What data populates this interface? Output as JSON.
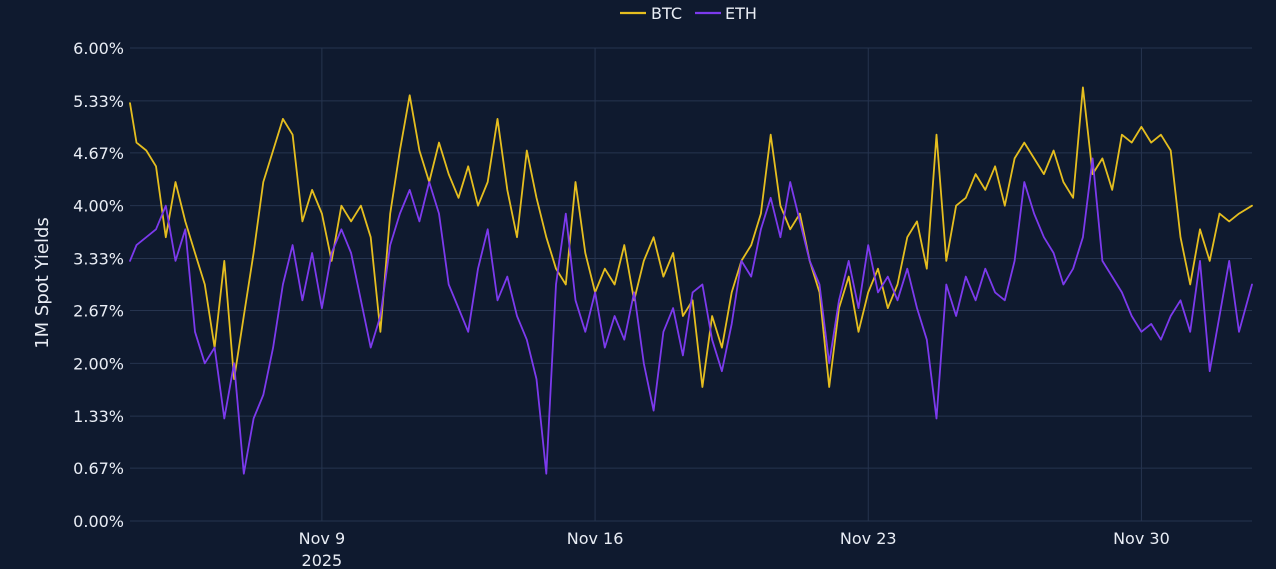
{
  "colors": {
    "background": "#0f1a2f",
    "grid": "#26344f",
    "btc": "#e5be1f",
    "eth": "#7c3aed",
    "text": "#e9edf5"
  },
  "chart_data": {
    "type": "line",
    "title": "",
    "ylabel": "1M Spot Yields",
    "xlabel": "",
    "legend": {
      "position": "top-center",
      "entries": [
        "BTC",
        "ETH"
      ]
    },
    "grid": true,
    "xlim": [
      "2025-11-04T02:00",
      "2025-12-02T20:00"
    ],
    "ylim": [
      0,
      6
    ],
    "y_unit": "%",
    "y_ticks": [
      {
        "value": 0.0,
        "label": "0.00%"
      },
      {
        "value": 0.67,
        "label": "0.67%"
      },
      {
        "value": 1.33,
        "label": "1.33%"
      },
      {
        "value": 2.0,
        "label": "2.00%"
      },
      {
        "value": 2.67,
        "label": "2.67%"
      },
      {
        "value": 3.33,
        "label": "3.33%"
      },
      {
        "value": 4.0,
        "label": "4.00%"
      },
      {
        "value": 4.67,
        "label": "4.67%"
      },
      {
        "value": 5.33,
        "label": "5.33%"
      },
      {
        "value": 6.0,
        "label": "6.00%"
      }
    ],
    "x_ticks": [
      {
        "date": "2025-11-09",
        "label": "Nov 9",
        "sublabel": "2025"
      },
      {
        "date": "2025-11-16",
        "label": "Nov 16",
        "sublabel": ""
      },
      {
        "date": "2025-11-23",
        "label": "Nov 23",
        "sublabel": ""
      },
      {
        "date": "2025-11-30",
        "label": "Nov 30",
        "sublabel": ""
      }
    ],
    "series": [
      {
        "name": "BTC",
        "color": "#e5be1f",
        "points": [
          [
            "2025-11-04T02:00",
            5.3
          ],
          [
            "2025-11-04T06:00",
            4.8
          ],
          [
            "2025-11-04T12:00",
            4.7
          ],
          [
            "2025-11-04T18:00",
            4.5
          ],
          [
            "2025-11-05T00:00",
            3.6
          ],
          [
            "2025-11-05T06:00",
            4.3
          ],
          [
            "2025-11-05T12:00",
            3.8
          ],
          [
            "2025-11-05T18:00",
            3.4
          ],
          [
            "2025-11-06T00:00",
            3.0
          ],
          [
            "2025-11-06T06:00",
            2.2
          ],
          [
            "2025-11-06T12:00",
            3.3
          ],
          [
            "2025-11-06T18:00",
            1.8
          ],
          [
            "2025-11-07T00:00",
            2.6
          ],
          [
            "2025-11-07T06:00",
            3.4
          ],
          [
            "2025-11-07T12:00",
            4.3
          ],
          [
            "2025-11-07T18:00",
            4.7
          ],
          [
            "2025-11-08T00:00",
            5.1
          ],
          [
            "2025-11-08T06:00",
            4.9
          ],
          [
            "2025-11-08T12:00",
            3.8
          ],
          [
            "2025-11-08T18:00",
            4.2
          ],
          [
            "2025-11-09T00:00",
            3.9
          ],
          [
            "2025-11-09T06:00",
            3.3
          ],
          [
            "2025-11-09T12:00",
            4.0
          ],
          [
            "2025-11-09T18:00",
            3.8
          ],
          [
            "2025-11-10T00:00",
            4.0
          ],
          [
            "2025-11-10T06:00",
            3.6
          ],
          [
            "2025-11-10T12:00",
            2.4
          ],
          [
            "2025-11-10T18:00",
            3.9
          ],
          [
            "2025-11-11T00:00",
            4.7
          ],
          [
            "2025-11-11T06:00",
            5.4
          ],
          [
            "2025-11-11T12:00",
            4.7
          ],
          [
            "2025-11-11T18:00",
            4.3
          ],
          [
            "2025-11-12T00:00",
            4.8
          ],
          [
            "2025-11-12T06:00",
            4.4
          ],
          [
            "2025-11-12T12:00",
            4.1
          ],
          [
            "2025-11-12T18:00",
            4.5
          ],
          [
            "2025-11-13T00:00",
            4.0
          ],
          [
            "2025-11-13T06:00",
            4.3
          ],
          [
            "2025-11-13T12:00",
            5.1
          ],
          [
            "2025-11-13T18:00",
            4.2
          ],
          [
            "2025-11-14T00:00",
            3.6
          ],
          [
            "2025-11-14T06:00",
            4.7
          ],
          [
            "2025-11-14T12:00",
            4.1
          ],
          [
            "2025-11-14T18:00",
            3.6
          ],
          [
            "2025-11-15T00:00",
            3.2
          ],
          [
            "2025-11-15T06:00",
            3.0
          ],
          [
            "2025-11-15T12:00",
            4.3
          ],
          [
            "2025-11-15T18:00",
            3.4
          ],
          [
            "2025-11-16T00:00",
            2.9
          ],
          [
            "2025-11-16T06:00",
            3.2
          ],
          [
            "2025-11-16T12:00",
            3.0
          ],
          [
            "2025-11-16T18:00",
            3.5
          ],
          [
            "2025-11-17T00:00",
            2.8
          ],
          [
            "2025-11-17T06:00",
            3.3
          ],
          [
            "2025-11-17T12:00",
            3.6
          ],
          [
            "2025-11-17T18:00",
            3.1
          ],
          [
            "2025-11-18T00:00",
            3.4
          ],
          [
            "2025-11-18T06:00",
            2.6
          ],
          [
            "2025-11-18T12:00",
            2.8
          ],
          [
            "2025-11-18T18:00",
            1.7
          ],
          [
            "2025-11-19T00:00",
            2.6
          ],
          [
            "2025-11-19T06:00",
            2.2
          ],
          [
            "2025-11-19T12:00",
            2.9
          ],
          [
            "2025-11-19T18:00",
            3.3
          ],
          [
            "2025-11-20T00:00",
            3.5
          ],
          [
            "2025-11-20T06:00",
            3.9
          ],
          [
            "2025-11-20T12:00",
            4.9
          ],
          [
            "2025-11-20T18:00",
            4.0
          ],
          [
            "2025-11-21T00:00",
            3.7
          ],
          [
            "2025-11-21T06:00",
            3.9
          ],
          [
            "2025-11-21T12:00",
            3.3
          ],
          [
            "2025-11-21T18:00",
            2.9
          ],
          [
            "2025-11-22T00:00",
            1.7
          ],
          [
            "2025-11-22T06:00",
            2.7
          ],
          [
            "2025-11-22T12:00",
            3.1
          ],
          [
            "2025-11-22T18:00",
            2.4
          ],
          [
            "2025-11-23T00:00",
            2.9
          ],
          [
            "2025-11-23T06:00",
            3.2
          ],
          [
            "2025-11-23T12:00",
            2.7
          ],
          [
            "2025-11-23T18:00",
            3.0
          ],
          [
            "2025-11-24T00:00",
            3.6
          ],
          [
            "2025-11-24T06:00",
            3.8
          ],
          [
            "2025-11-24T12:00",
            3.2
          ],
          [
            "2025-11-24T18:00",
            4.9
          ],
          [
            "2025-11-25T00:00",
            3.3
          ],
          [
            "2025-11-25T06:00",
            4.0
          ],
          [
            "2025-11-25T12:00",
            4.1
          ],
          [
            "2025-11-25T18:00",
            4.4
          ],
          [
            "2025-11-26T00:00",
            4.2
          ],
          [
            "2025-11-26T06:00",
            4.5
          ],
          [
            "2025-11-26T12:00",
            4.0
          ],
          [
            "2025-11-26T18:00",
            4.6
          ],
          [
            "2025-11-27T00:00",
            4.8
          ],
          [
            "2025-11-27T06:00",
            4.6
          ],
          [
            "2025-11-27T12:00",
            4.4
          ],
          [
            "2025-11-27T18:00",
            4.7
          ],
          [
            "2025-11-28T00:00",
            4.3
          ],
          [
            "2025-11-28T06:00",
            4.1
          ],
          [
            "2025-11-28T12:00",
            5.5
          ],
          [
            "2025-11-28T18:00",
            4.4
          ],
          [
            "2025-11-29T00:00",
            4.6
          ],
          [
            "2025-11-29T06:00",
            4.2
          ],
          [
            "2025-11-29T12:00",
            4.9
          ],
          [
            "2025-11-29T18:00",
            4.8
          ],
          [
            "2025-11-30T00:00",
            5.0
          ],
          [
            "2025-11-30T06:00",
            4.8
          ],
          [
            "2025-11-30T12:00",
            4.9
          ],
          [
            "2025-11-30T18:00",
            4.7
          ],
          [
            "2025-12-01T00:00",
            3.6
          ],
          [
            "2025-12-01T06:00",
            3.0
          ],
          [
            "2025-12-01T12:00",
            3.7
          ],
          [
            "2025-12-01T18:00",
            3.3
          ],
          [
            "2025-12-02T00:00",
            3.9
          ],
          [
            "2025-12-02T06:00",
            3.8
          ],
          [
            "2025-12-02T12:00",
            3.9
          ],
          [
            "2025-12-02T20:00",
            4.0
          ]
        ]
      },
      {
        "name": "ETH",
        "color": "#7c3aed",
        "points": [
          [
            "2025-11-04T02:00",
            3.3
          ],
          [
            "2025-11-04T06:00",
            3.5
          ],
          [
            "2025-11-04T12:00",
            3.6
          ],
          [
            "2025-11-04T18:00",
            3.7
          ],
          [
            "2025-11-05T00:00",
            4.0
          ],
          [
            "2025-11-05T06:00",
            3.3
          ],
          [
            "2025-11-05T12:00",
            3.7
          ],
          [
            "2025-11-05T18:00",
            2.4
          ],
          [
            "2025-11-06T00:00",
            2.0
          ],
          [
            "2025-11-06T06:00",
            2.2
          ],
          [
            "2025-11-06T12:00",
            1.3
          ],
          [
            "2025-11-06T18:00",
            2.0
          ],
          [
            "2025-11-07T00:00",
            0.6
          ],
          [
            "2025-11-07T06:00",
            1.3
          ],
          [
            "2025-11-07T12:00",
            1.6
          ],
          [
            "2025-11-07T18:00",
            2.2
          ],
          [
            "2025-11-08T00:00",
            3.0
          ],
          [
            "2025-11-08T06:00",
            3.5
          ],
          [
            "2025-11-08T12:00",
            2.8
          ],
          [
            "2025-11-08T18:00",
            3.4
          ],
          [
            "2025-11-09T00:00",
            2.7
          ],
          [
            "2025-11-09T06:00",
            3.4
          ],
          [
            "2025-11-09T12:00",
            3.7
          ],
          [
            "2025-11-09T18:00",
            3.4
          ],
          [
            "2025-11-10T00:00",
            2.8
          ],
          [
            "2025-11-10T06:00",
            2.2
          ],
          [
            "2025-11-10T12:00",
            2.6
          ],
          [
            "2025-11-10T18:00",
            3.5
          ],
          [
            "2025-11-11T00:00",
            3.9
          ],
          [
            "2025-11-11T06:00",
            4.2
          ],
          [
            "2025-11-11T12:00",
            3.8
          ],
          [
            "2025-11-11T18:00",
            4.3
          ],
          [
            "2025-11-12T00:00",
            3.9
          ],
          [
            "2025-11-12T06:00",
            3.0
          ],
          [
            "2025-11-12T12:00",
            2.7
          ],
          [
            "2025-11-12T18:00",
            2.4
          ],
          [
            "2025-11-13T00:00",
            3.2
          ],
          [
            "2025-11-13T06:00",
            3.7
          ],
          [
            "2025-11-13T12:00",
            2.8
          ],
          [
            "2025-11-13T18:00",
            3.1
          ],
          [
            "2025-11-14T00:00",
            2.6
          ],
          [
            "2025-11-14T06:00",
            2.3
          ],
          [
            "2025-11-14T12:00",
            1.8
          ],
          [
            "2025-11-14T18:00",
            0.6
          ],
          [
            "2025-11-15T00:00",
            3.0
          ],
          [
            "2025-11-15T06:00",
            3.9
          ],
          [
            "2025-11-15T12:00",
            2.8
          ],
          [
            "2025-11-15T18:00",
            2.4
          ],
          [
            "2025-11-16T00:00",
            2.9
          ],
          [
            "2025-11-16T06:00",
            2.2
          ],
          [
            "2025-11-16T12:00",
            2.6
          ],
          [
            "2025-11-16T18:00",
            2.3
          ],
          [
            "2025-11-17T00:00",
            2.9
          ],
          [
            "2025-11-17T06:00",
            2.0
          ],
          [
            "2025-11-17T12:00",
            1.4
          ],
          [
            "2025-11-17T18:00",
            2.4
          ],
          [
            "2025-11-18T00:00",
            2.7
          ],
          [
            "2025-11-18T06:00",
            2.1
          ],
          [
            "2025-11-18T12:00",
            2.9
          ],
          [
            "2025-11-18T18:00",
            3.0
          ],
          [
            "2025-11-19T00:00",
            2.3
          ],
          [
            "2025-11-19T06:00",
            1.9
          ],
          [
            "2025-11-19T12:00",
            2.5
          ],
          [
            "2025-11-19T18:00",
            3.3
          ],
          [
            "2025-11-20T00:00",
            3.1
          ],
          [
            "2025-11-20T06:00",
            3.7
          ],
          [
            "2025-11-20T12:00",
            4.1
          ],
          [
            "2025-11-20T18:00",
            3.6
          ],
          [
            "2025-11-21T00:00",
            4.3
          ],
          [
            "2025-11-21T06:00",
            3.8
          ],
          [
            "2025-11-21T12:00",
            3.3
          ],
          [
            "2025-11-21T18:00",
            3.0
          ],
          [
            "2025-11-22T00:00",
            2.0
          ],
          [
            "2025-11-22T06:00",
            2.8
          ],
          [
            "2025-11-22T12:00",
            3.3
          ],
          [
            "2025-11-22T18:00",
            2.7
          ],
          [
            "2025-11-23T00:00",
            3.5
          ],
          [
            "2025-11-23T06:00",
            2.9
          ],
          [
            "2025-11-23T12:00",
            3.1
          ],
          [
            "2025-11-23T18:00",
            2.8
          ],
          [
            "2025-11-24T00:00",
            3.2
          ],
          [
            "2025-11-24T06:00",
            2.7
          ],
          [
            "2025-11-24T12:00",
            2.3
          ],
          [
            "2025-11-24T18:00",
            1.3
          ],
          [
            "2025-11-25T00:00",
            3.0
          ],
          [
            "2025-11-25T06:00",
            2.6
          ],
          [
            "2025-11-25T12:00",
            3.1
          ],
          [
            "2025-11-25T18:00",
            2.8
          ],
          [
            "2025-11-26T00:00",
            3.2
          ],
          [
            "2025-11-26T06:00",
            2.9
          ],
          [
            "2025-11-26T12:00",
            2.8
          ],
          [
            "2025-11-26T18:00",
            3.3
          ],
          [
            "2025-11-27T00:00",
            4.3
          ],
          [
            "2025-11-27T06:00",
            3.9
          ],
          [
            "2025-11-27T12:00",
            3.6
          ],
          [
            "2025-11-27T18:00",
            3.4
          ],
          [
            "2025-11-28T00:00",
            3.0
          ],
          [
            "2025-11-28T06:00",
            3.2
          ],
          [
            "2025-11-28T12:00",
            3.6
          ],
          [
            "2025-11-28T18:00",
            4.6
          ],
          [
            "2025-11-29T00:00",
            3.3
          ],
          [
            "2025-11-29T06:00",
            3.1
          ],
          [
            "2025-11-29T12:00",
            2.9
          ],
          [
            "2025-11-29T18:00",
            2.6
          ],
          [
            "2025-11-30T00:00",
            2.4
          ],
          [
            "2025-11-30T06:00",
            2.5
          ],
          [
            "2025-11-30T12:00",
            2.3
          ],
          [
            "2025-11-30T18:00",
            2.6
          ],
          [
            "2025-12-01T00:00",
            2.8
          ],
          [
            "2025-12-01T06:00",
            2.4
          ],
          [
            "2025-12-01T12:00",
            3.3
          ],
          [
            "2025-12-01T18:00",
            1.9
          ],
          [
            "2025-12-02T00:00",
            2.6
          ],
          [
            "2025-12-02T06:00",
            3.3
          ],
          [
            "2025-12-02T12:00",
            2.4
          ],
          [
            "2025-12-02T20:00",
            3.0
          ]
        ]
      }
    ]
  }
}
